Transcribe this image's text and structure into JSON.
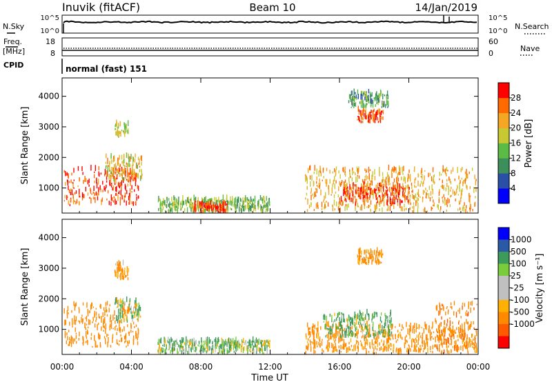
{
  "header": {
    "station": "Inuvik (fitACF)",
    "beam": "Beam 10",
    "date": "14/Jan/2019"
  },
  "strip_panels": {
    "nsky": {
      "left_label": "N.Sky",
      "right_label": "N.Search",
      "left_ticks": [
        "10^5",
        "10^0"
      ],
      "right_ticks": [
        "10^5",
        "10^0"
      ]
    },
    "freq": {
      "left_label_top": "Freq.",
      "left_label_bottom": "[MHz]",
      "left_ticks": [
        "18",
        "8"
      ],
      "right_label": "Nave",
      "right_ticks": [
        "60",
        "0"
      ]
    },
    "cpid": {
      "label": "CPID",
      "value": "normal (fast) 151"
    }
  },
  "colors": {
    "power_scale": [
      "#0000ff",
      "#2a4fa6",
      "#3c8f5a",
      "#5cbb45",
      "#c8c832",
      "#f5a623",
      "#ff6a00",
      "#ff0000"
    ],
    "velocity_scale": [
      "#ff0000",
      "#ff5a00",
      "#ff8a00",
      "#ffb000",
      "#c0c0c0",
      "#c0c0c0",
      "#7acc3a",
      "#3c9a5a",
      "#2a5aa6",
      "#0000ff"
    ]
  },
  "power_colorbar": {
    "label": "Power [dB]",
    "ticks": [
      "28",
      "24",
      "20",
      "16",
      "12",
      "8",
      "4"
    ]
  },
  "velocity_colorbar": {
    "label": "Velocity [m s⁻¹]",
    "ticks": [
      "1000",
      "500",
      "100",
      "25",
      "-25",
      "-100",
      "-500",
      "-1000"
    ]
  },
  "time_axis": {
    "label": "Time UT",
    "ticks": [
      "00:00",
      "04:00",
      "08:00",
      "12:00",
      "16:00",
      "20:00",
      "00:00"
    ]
  },
  "chart_data": [
    {
      "type": "heatmap",
      "title": "Power",
      "xlabel": "Time UT",
      "ylabel": "Slant Range [km]",
      "xlim": [
        0,
        24
      ],
      "ylim": [
        180,
        4600
      ],
      "y_ticks": [
        1000,
        2000,
        3000,
        4000
      ],
      "colorbar_label": "Power [dB]",
      "colorbar_range": [
        0,
        30
      ],
      "regions": [
        {
          "t": [
            0.1,
            4.4
          ],
          "range": [
            400,
            1600
          ],
          "value": 28
        },
        {
          "t": [
            2.5,
            4.6
          ],
          "range": [
            1200,
            2000
          ],
          "value": 20
        },
        {
          "t": [
            3.0,
            3.8
          ],
          "range": [
            2600,
            3100
          ],
          "value": 18
        },
        {
          "t": [
            5.5,
            12.0
          ],
          "range": [
            180,
            600
          ],
          "value": 14
        },
        {
          "t": [
            7.5,
            9.5
          ],
          "range": [
            180,
            450
          ],
          "value": 28
        },
        {
          "t": [
            14.0,
            23.9
          ],
          "range": [
            180,
            1600
          ],
          "value": 22
        },
        {
          "t": [
            16.0,
            20.0
          ],
          "range": [
            400,
            1100
          ],
          "value": 28
        },
        {
          "t": [
            17.0,
            18.5
          ],
          "range": [
            3100,
            3500
          ],
          "value": 28
        },
        {
          "t": [
            16.5,
            18.8
          ],
          "range": [
            3600,
            4100
          ],
          "value": 12
        }
      ]
    },
    {
      "type": "heatmap",
      "title": "Velocity",
      "xlabel": "Time UT",
      "ylabel": "Slant Range [km]",
      "xlim": [
        0,
        24
      ],
      "ylim": [
        180,
        4600
      ],
      "y_ticks": [
        1000,
        2000,
        3000,
        4000
      ],
      "colorbar_label": "Velocity [m s⁻¹]",
      "colorbar_range": [
        -1000,
        1000
      ],
      "regions": [
        {
          "t": [
            0.1,
            4.4
          ],
          "range": [
            400,
            1800
          ],
          "value": -300
        },
        {
          "t": [
            3.0,
            4.5
          ],
          "range": [
            1200,
            1900
          ],
          "value": 80
        },
        {
          "t": [
            3.0,
            3.8
          ],
          "range": [
            2600,
            3100
          ],
          "value": -200
        },
        {
          "t": [
            5.5,
            12.0
          ],
          "range": [
            180,
            600
          ],
          "value": 100
        },
        {
          "t": [
            14.0,
            23.9
          ],
          "range": [
            180,
            1100
          ],
          "value": -250
        },
        {
          "t": [
            15.0,
            19.0
          ],
          "range": [
            700,
            1500
          ],
          "value": 150
        },
        {
          "t": [
            17.0,
            18.5
          ],
          "range": [
            3100,
            3500
          ],
          "value": -200
        },
        {
          "t": [
            21.5,
            23.9
          ],
          "range": [
            200,
            1800
          ],
          "value": -400
        }
      ]
    }
  ]
}
